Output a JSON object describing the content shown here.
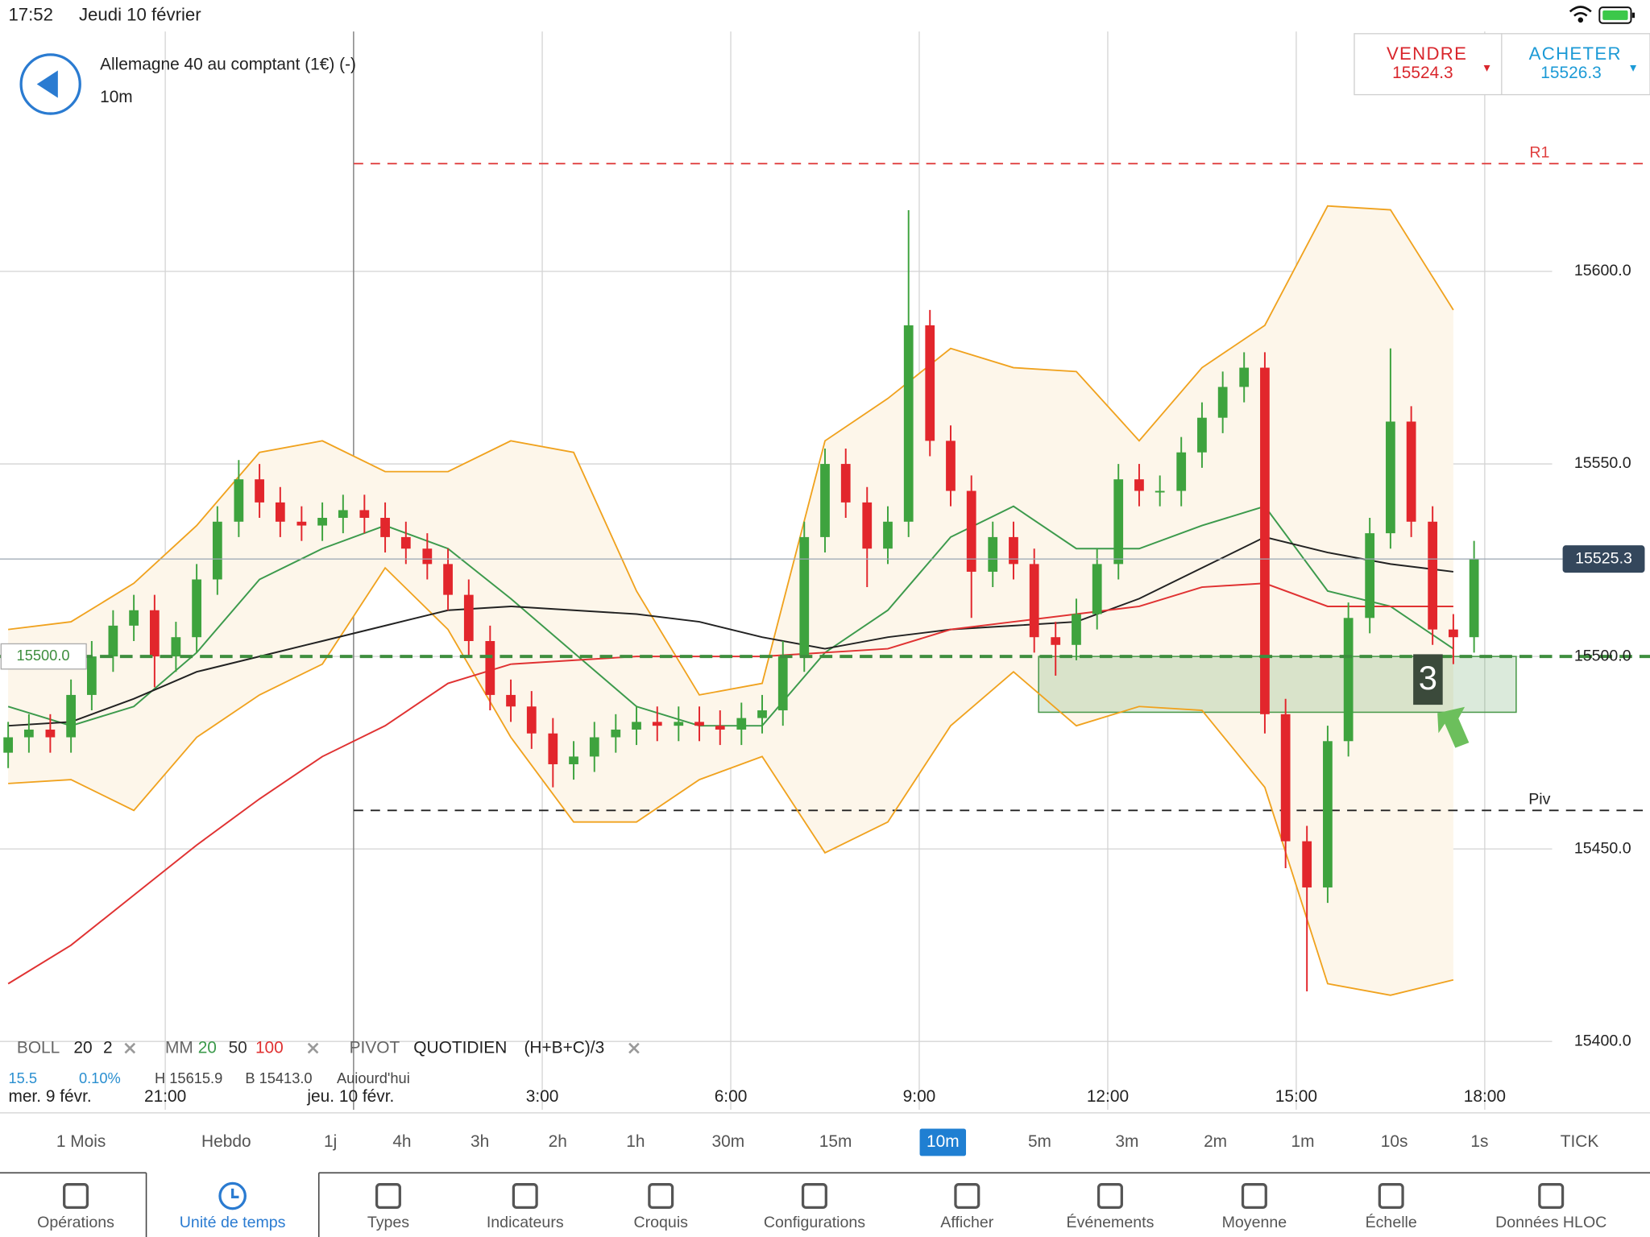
{
  "status_bar": {
    "time": "17:52",
    "date": "Jeudi 10 février"
  },
  "header": {
    "title": "Allemagne 40 au comptant (1€) (-)",
    "interval": "10m"
  },
  "quote": {
    "sell": {
      "label": "VENDRE",
      "price": 15524.3
    },
    "buy": {
      "label": "ACHETER",
      "price": 15526.3
    }
  },
  "chart_data": {
    "type": "candlestick",
    "xlim": [
      18.37,
      44.63
    ],
    "ylim": [
      15389.1,
      15662.3
    ],
    "xticks": [
      {
        "value": 21,
        "label": "21:00"
      },
      {
        "value": 27,
        "label": "3:00"
      },
      {
        "value": 30,
        "label": "6:00"
      },
      {
        "value": 33,
        "label": "9:00"
      },
      {
        "value": 36,
        "label": "12:00"
      },
      {
        "value": 39,
        "label": "15:00"
      },
      {
        "value": 42,
        "label": "18:00"
      }
    ],
    "yticks": [
      {
        "value": 15400,
        "label": "15400.0"
      },
      {
        "value": 15450,
        "label": "15450.0"
      },
      {
        "value": 15500,
        "label": "15500.0"
      },
      {
        "value": 15550,
        "label": "15550.0"
      },
      {
        "value": 15600,
        "label": "15600.0"
      }
    ],
    "date_labels": [
      "mer. 9 févr.",
      "jeu. 10 févr."
    ],
    "grid": true,
    "up_color": "#3ea33e",
    "down_color": "#e2262c",
    "x": [
      18.5,
      18.83,
      19.17,
      19.5,
      19.83,
      20.17,
      20.5,
      20.83,
      21.17,
      21.5,
      21.83,
      22.17,
      22.5,
      22.83,
      23.17,
      23.5,
      23.83,
      24.17,
      24.5,
      24.83,
      25.17,
      25.5,
      25.83,
      26.17,
      26.5,
      26.83,
      27.17,
      27.5,
      27.83,
      28.17,
      28.5,
      28.83,
      29.17,
      29.5,
      29.83,
      30.17,
      30.5,
      30.83,
      31.17,
      31.5,
      31.83,
      32.17,
      32.5,
      32.83,
      33.17,
      33.5,
      33.83,
      34.17,
      34.5,
      34.83,
      35.17,
      35.5,
      35.83,
      36.17,
      36.5,
      36.83,
      37.17,
      37.5,
      37.83,
      38.17,
      38.5,
      38.83,
      39.17,
      39.5,
      39.83,
      40.17,
      40.5,
      40.83,
      41.17,
      41.5,
      41.83
    ],
    "open": [
      15475,
      15479,
      15481,
      15479,
      15490,
      15500,
      15508,
      15512,
      15500,
      15505,
      15520,
      15535,
      15546,
      15540,
      15535,
      15534,
      15536,
      15538,
      15536,
      15531,
      15528,
      15524,
      15516,
      15504,
      15490,
      15487,
      15480,
      15472,
      15474,
      15479,
      15481,
      15483,
      15482,
      15483,
      15482,
      15481,
      15484,
      15486,
      15500,
      15531,
      15550,
      15540,
      15528,
      15535,
      15586,
      15556,
      15543,
      15522,
      15531,
      15524,
      15505,
      15503,
      15511,
      15524,
      15546,
      15543,
      15543,
      15553,
      15562,
      15570,
      15575,
      15485,
      15452,
      15440,
      15478,
      15510,
      15532,
      15561,
      15535,
      15507,
      15505
    ],
    "high": [
      15483,
      15485,
      15485,
      15494,
      15504,
      15512,
      15516,
      15516,
      15509,
      15524,
      15539,
      15551,
      15550,
      15544,
      15539,
      15540,
      15542,
      15542,
      15540,
      15535,
      15532,
      15528,
      15520,
      15508,
      15494,
      15491,
      15484,
      15478,
      15483,
      15485,
      15487,
      15487,
      15487,
      15487,
      15486,
      15488,
      15490,
      15504,
      15535,
      15554,
      15554,
      15544,
      15539,
      15615.9,
      15590,
      15560,
      15547,
      15535,
      15535,
      15528,
      15509,
      15515,
      15528,
      15550,
      15550,
      15547,
      15557,
      15566,
      15574,
      15579,
      15579,
      15489,
      15456,
      15482,
      15514,
      15536,
      15580,
      15565,
      15539,
      15511,
      15530
    ],
    "low": [
      15471,
      15475,
      15475,
      15475,
      15486,
      15496,
      15504,
      15492,
      15496,
      15501,
      15516,
      15531,
      15536,
      15531,
      15530,
      15530,
      15532,
      15532,
      15527,
      15524,
      15520,
      15512,
      15500,
      15486,
      15483,
      15476,
      15466,
      15468,
      15470,
      15475,
      15477,
      15478,
      15478,
      15478,
      15477,
      15477,
      15480,
      15482,
      15496,
      15527,
      15536,
      15518,
      15524,
      15531,
      15552,
      15539,
      15510,
      15518,
      15520,
      15501,
      15495,
      15499,
      15507,
      15520,
      15539,
      15539,
      15539,
      15549,
      15558,
      15566,
      15480,
      15445,
      15413.0,
      15436,
      15474,
      15506,
      15528,
      15531,
      15503,
      15498,
      15501
    ],
    "close": [
      15479,
      15481,
      15479,
      15490,
      15500,
      15508,
      15512,
      15500,
      15505,
      15520,
      15535,
      15546,
      15540,
      15535,
      15534,
      15536,
      15538,
      15536,
      15531,
      15528,
      15524,
      15516,
      15504,
      15490,
      15487,
      15480,
      15472,
      15474,
      15479,
      15481,
      15483,
      15482,
      15483,
      15482,
      15481,
      15484,
      15486,
      15500,
      15531,
      15550,
      15540,
      15528,
      15535,
      15586,
      15556,
      15543,
      15522,
      15531,
      15524,
      15505,
      15503,
      15511,
      15524,
      15546,
      15543,
      15543,
      15553,
      15562,
      15570,
      15575,
      15485,
      15452,
      15440,
      15478,
      15510,
      15532,
      15561,
      15535,
      15507,
      15505,
      15525.3
    ],
    "last": 15525.3,
    "overlay_x": [
      18.5,
      19.5,
      20.5,
      21.5,
      22.5,
      23.5,
      24.5,
      25.5,
      26.5,
      27.5,
      28.5,
      29.5,
      30.5,
      31.5,
      32.5,
      33.5,
      34.5,
      35.5,
      36.5,
      37.5,
      38.5,
      39.5,
      40.5,
      41.5
    ],
    "bollinger": {
      "label": "BOLL",
      "period": 20,
      "deviation": 2,
      "color": "#f0a21e",
      "fill": "#fdf6ea",
      "upper": [
        15507,
        15509,
        15519,
        15534,
        15553,
        15556,
        15548,
        15548,
        15556,
        15553,
        15517,
        15490,
        15493,
        15556,
        15567,
        15580,
        15575,
        15574,
        15556,
        15575,
        15586,
        15617,
        15616,
        15590
      ],
      "lower": [
        15467,
        15468,
        15460,
        15479,
        15490,
        15498,
        15523,
        15507,
        15479,
        15457,
        15457,
        15468,
        15474,
        15449,
        15457,
        15482,
        15496,
        15482,
        15487,
        15486,
        15466,
        15415,
        15412,
        15416
      ]
    },
    "moving_averages": {
      "label": "MM",
      "lines": [
        {
          "period": 20,
          "color": "#3c9a4c",
          "values": [
            15487,
            15482,
            15487,
            15501,
            15520,
            15528,
            15534,
            15528,
            15515,
            15501,
            15487,
            15482,
            15482,
            15501,
            15512,
            15531,
            15539,
            15528,
            15528,
            15534,
            15539,
            15517,
            15513,
            15502
          ]
        },
        {
          "period": 50,
          "color": "#222222",
          "values": [
            15482,
            15483,
            15489,
            15496,
            15500,
            15504,
            15508,
            15512,
            15513,
            15512,
            15511,
            15509,
            15505,
            15502,
            15505,
            15507,
            15508,
            15509,
            15515,
            15523,
            15531,
            15527,
            15524,
            15522
          ]
        },
        {
          "period": 100,
          "color": "#e03232",
          "values": [
            15415,
            15425,
            15438,
            15451,
            15463,
            15474,
            15482,
            15493,
            15498,
            15499,
            15500,
            15500,
            15500,
            15501,
            15502,
            15507,
            15509,
            15511,
            15513,
            15518,
            15519,
            15513,
            15513,
            15513
          ]
        }
      ]
    },
    "pivot": {
      "label": "PIVOT",
      "period": "QUOTIDIEN",
      "formula": "(H+B+C)/3",
      "x_start": 24,
      "levels": [
        {
          "label": "R1",
          "value": 15628,
          "color": "#e04040"
        },
        {
          "label": "Piv",
          "value": 15460,
          "color": "#222222"
        }
      ]
    },
    "reference_line": {
      "value": 15500,
      "label": "15500.0",
      "color": "#3e8e3e"
    },
    "zone": {
      "x": [
        34.9,
        42.5
      ],
      "y": [
        15485.5,
        15500
      ]
    },
    "marker_label": "3",
    "info_row": [
      "15.5",
      "0.10%",
      "H 15615.9",
      "B 15413.0",
      "Aujourd'hui"
    ]
  },
  "timeframes": {
    "items": [
      "1 Mois",
      "Hebdo",
      "1j",
      "4h",
      "3h",
      "2h",
      "1h",
      "30m",
      "15m",
      "10m",
      "5m",
      "3m",
      "2m",
      "1m",
      "10s",
      "1s",
      "TICK"
    ],
    "selected_index": 9
  },
  "toolbar": {
    "items": [
      "Opérations",
      "Unité de temps",
      "Types",
      "Indicateurs",
      "Croquis",
      "Configurations",
      "Afficher",
      "Événements",
      "Moyenne",
      "Échelle",
      "Données HLOC"
    ],
    "selected_index": 1
  }
}
